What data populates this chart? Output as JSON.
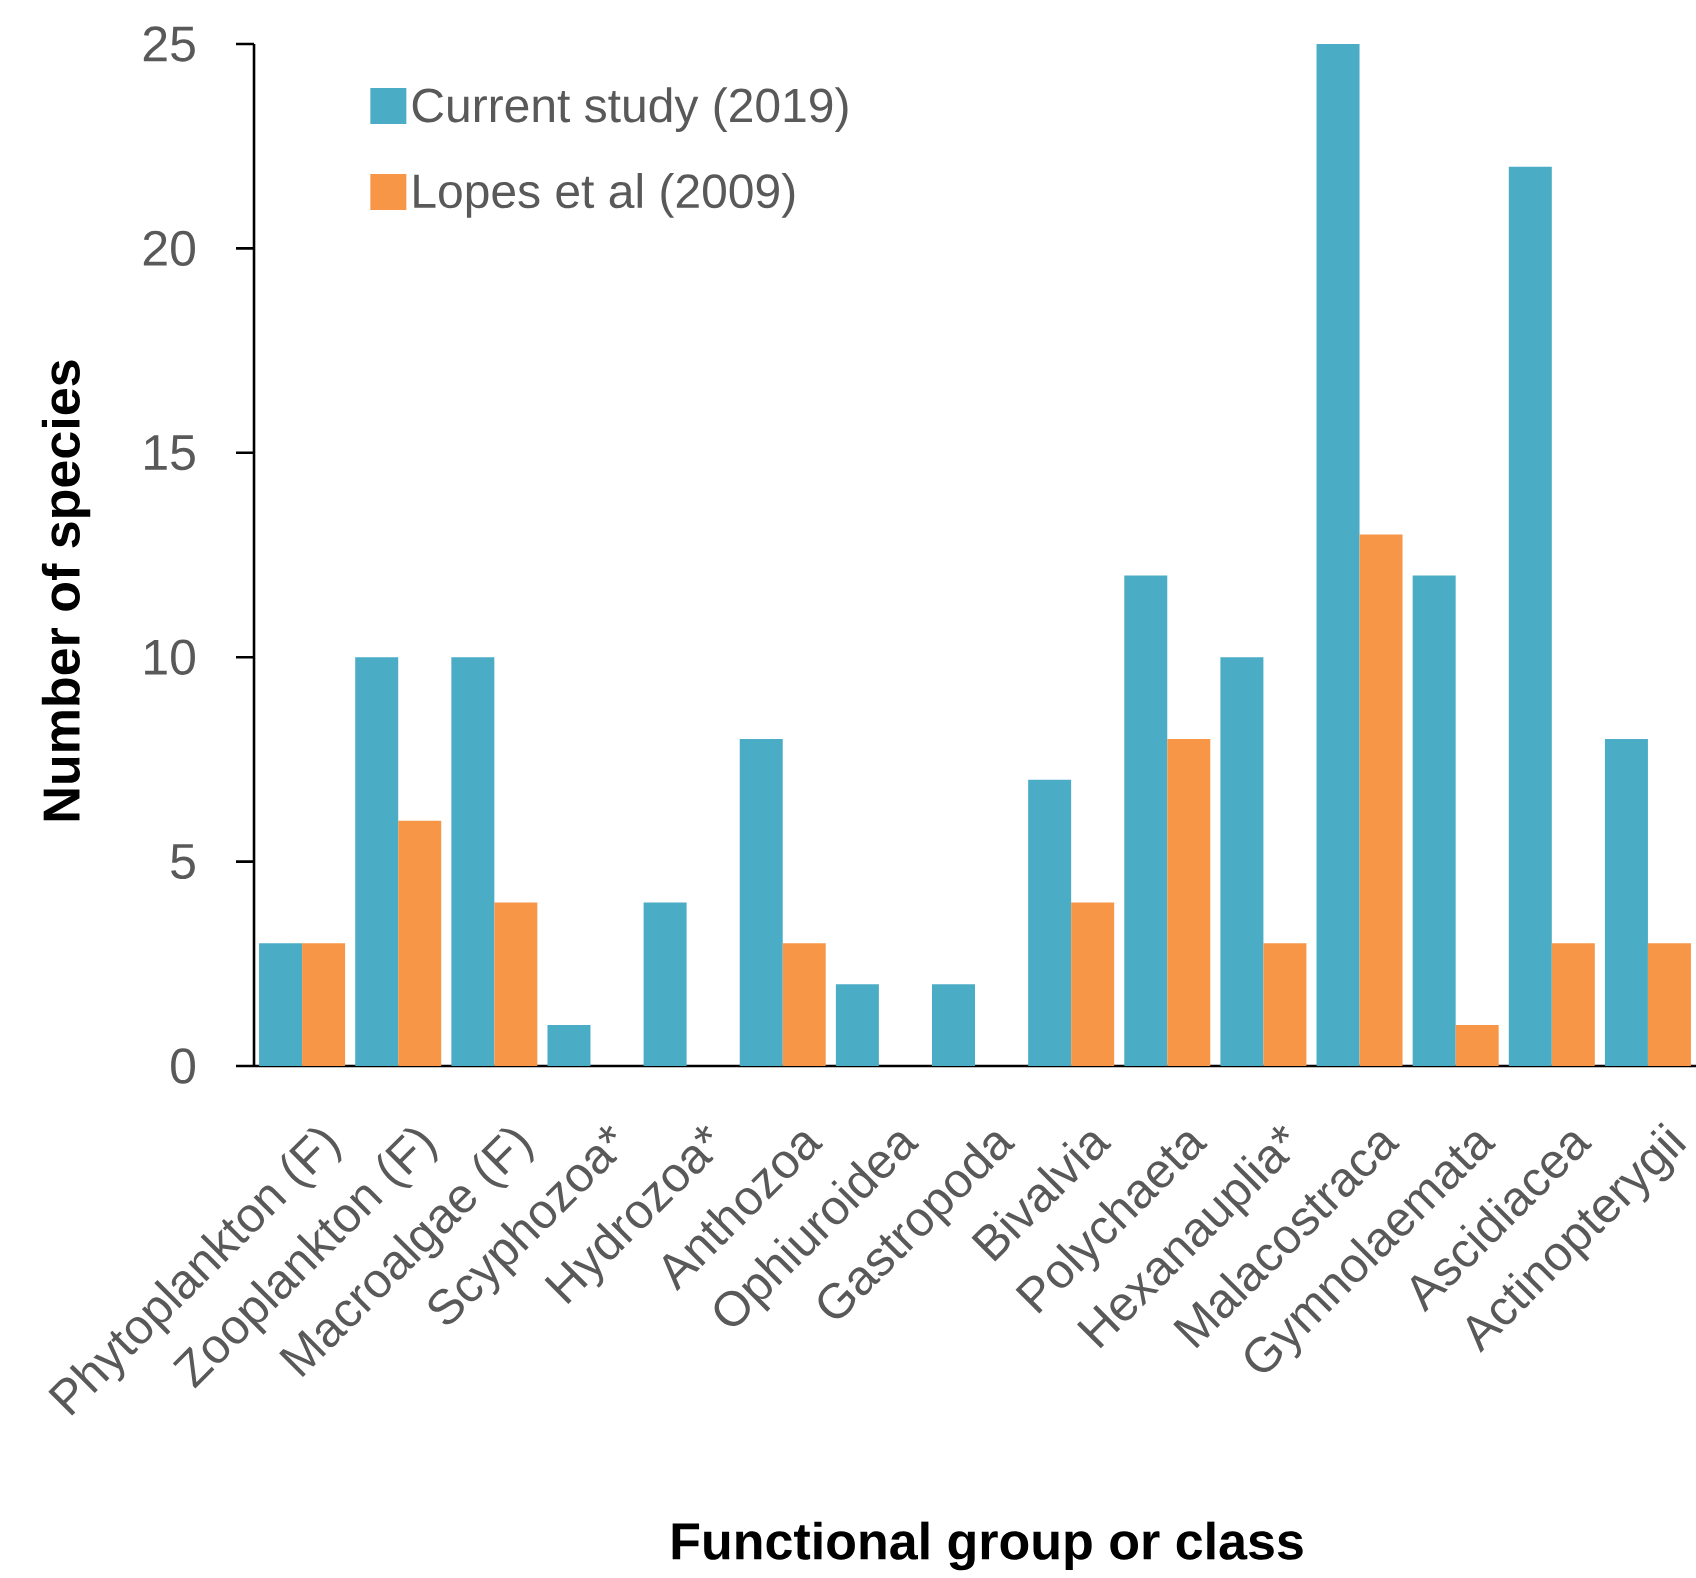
{
  "chart_data": {
    "type": "bar",
    "xlabel": "Functional group or class",
    "ylabel": "Number of species",
    "categories": [
      "Phytoplankton (F)",
      "Zooplankton (F)",
      "Macroalgae (F)",
      "Scyphozoa*",
      "Hydrozoa*",
      "Anthozoa",
      "Ophiuroidea",
      "Gastropoda",
      "Bivalvia",
      "Polychaeta",
      "Hexanauplia*",
      "Malacostraca",
      "Gymnolaemata",
      "Ascidiacea",
      "Actinopterygii"
    ],
    "series": [
      {
        "name": "Current study (2019)",
        "color": "#4bacc6",
        "values": [
          3,
          10,
          10,
          1,
          4,
          8,
          2,
          2,
          7,
          12,
          10,
          25,
          12,
          22,
          8
        ]
      },
      {
        "name": "Lopes et al (2009)",
        "color": "#f79646",
        "values": [
          3,
          6,
          4,
          null,
          null,
          3,
          null,
          null,
          4,
          8,
          3,
          13,
          1,
          3,
          3
        ]
      }
    ],
    "ylim": [
      0,
      25
    ],
    "yticks": [
      0,
      5,
      10,
      15,
      20,
      25
    ],
    "legend": "top left"
  }
}
